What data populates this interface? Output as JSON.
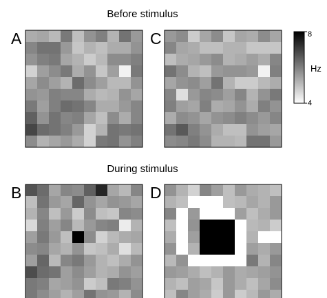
{
  "chart_data": {
    "type": "heatmap",
    "section_titles": {
      "top": "Before stimulus",
      "bottom": "During stimulus"
    },
    "colorbar": {
      "min": 4,
      "max": 8,
      "ticks": [
        "8",
        "4"
      ],
      "unit": "Hz",
      "colormap": [
        "#ffffff",
        "#000000"
      ]
    },
    "grid_size": [
      10,
      10
    ],
    "panels": [
      {
        "label": "A",
        "values": [
          [
            5.3,
            5.4,
            5.1,
            6.1,
            5.0,
            5.7,
            6.0,
            5.2,
            6.2,
            5.6
          ],
          [
            5.9,
            6.2,
            6.2,
            5.6,
            4.9,
            5.2,
            5.0,
            5.3,
            5.3,
            5.7
          ],
          [
            5.7,
            6.0,
            6.1,
            5.4,
            5.2,
            4.8,
            5.1,
            5.8,
            5.8,
            6.0
          ],
          [
            4.7,
            5.5,
            5.8,
            6.1,
            5.3,
            5.7,
            4.9,
            5.5,
            4.2,
            6.1
          ],
          [
            5.4,
            5.8,
            5.5,
            5.2,
            6.3,
            5.8,
            5.5,
            5.1,
            5.1,
            5.7
          ],
          [
            5.7,
            5.6,
            6.0,
            5.9,
            5.9,
            5.3,
            5.1,
            5.2,
            5.7,
            5.4
          ],
          [
            6.1,
            5.5,
            6.0,
            6.3,
            6.2,
            5.9,
            5.3,
            5.3,
            5.6,
            5.9
          ],
          [
            6.5,
            5.7,
            6.2,
            5.9,
            6.0,
            5.4,
            5.0,
            5.8,
            5.3,
            5.9
          ],
          [
            6.9,
            6.3,
            6.2,
            6.0,
            5.6,
            4.7,
            5.2,
            6.2,
            6.1,
            6.2
          ],
          [
            5.8,
            5.2,
            5.4,
            5.6,
            5.3,
            4.7,
            6.1,
            6.2,
            5.7,
            6.0
          ]
        ]
      },
      {
        "label": "C",
        "values": [
          [
            5.6,
            5.8,
            4.8,
            5.4,
            5.8,
            4.9,
            5.4,
            5.3,
            5.8,
            5.4
          ],
          [
            5.9,
            5.4,
            5.3,
            5.0,
            5.0,
            5.2,
            5.2,
            4.9,
            4.9,
            4.9
          ],
          [
            5.0,
            5.3,
            5.4,
            5.6,
            5.8,
            5.2,
            5.3,
            5.5,
            5.3,
            5.9
          ],
          [
            6.2,
            5.8,
            5.2,
            5.0,
            5.6,
            5.7,
            5.7,
            5.6,
            4.2,
            6.0
          ],
          [
            5.4,
            5.7,
            5.8,
            5.5,
            6.2,
            5.2,
            4.8,
            4.8,
            5.1,
            5.3
          ],
          [
            5.9,
            4.5,
            5.6,
            5.9,
            5.8,
            5.5,
            5.9,
            5.2,
            5.7,
            6.1
          ],
          [
            6.0,
            5.5,
            5.4,
            6.0,
            5.3,
            5.4,
            5.7,
            5.3,
            6.0,
            5.7
          ],
          [
            5.3,
            5.8,
            5.7,
            5.4,
            5.7,
            5.8,
            6.0,
            5.8,
            5.6,
            5.9
          ],
          [
            6.2,
            6.6,
            6.0,
            5.7,
            5.3,
            5.0,
            5.0,
            5.7,
            5.5,
            5.4
          ],
          [
            5.8,
            5.9,
            6.1,
            5.8,
            5.2,
            5.2,
            5.1,
            6.2,
            6.2,
            5.6
          ]
        ]
      },
      {
        "label": "B",
        "values": [
          [
            6.7,
            6.3,
            5.4,
            5.9,
            5.8,
            6.5,
            7.4,
            5.4,
            5.1,
            5.9
          ],
          [
            5.0,
            6.2,
            5.6,
            5.4,
            6.4,
            5.7,
            5.4,
            5.7,
            5.6,
            5.4
          ],
          [
            5.2,
            5.9,
            5.0,
            5.6,
            4.8,
            5.8,
            5.0,
            4.9,
            5.9,
            5.8
          ],
          [
            4.6,
            6.0,
            5.5,
            5.9,
            5.1,
            5.6,
            5.9,
            6.0,
            4.3,
            5.2
          ],
          [
            5.5,
            6.1,
            5.6,
            5.0,
            8.0,
            5.8,
            4.7,
            5.1,
            5.3,
            5.4
          ],
          [
            5.8,
            5.9,
            5.4,
            5.2,
            5.7,
            4.9,
            5.0,
            5.3,
            4.5,
            5.1
          ],
          [
            5.5,
            6.4,
            5.1,
            5.9,
            6.1,
            5.6,
            5.2,
            5.0,
            5.3,
            5.7
          ],
          [
            6.8,
            6.3,
            6.2,
            5.5,
            5.8,
            5.5,
            5.2,
            5.3,
            5.7,
            5.5
          ],
          [
            6.1,
            6.0,
            5.4,
            5.5,
            5.7,
            4.8,
            5.0,
            6.1,
            6.0,
            5.7
          ],
          [
            6.1,
            5.8,
            5.5,
            5.2,
            5.5,
            6.2,
            5.7,
            5.6,
            5.2,
            5.8
          ]
        ]
      },
      {
        "label": "D",
        "values": [
          [
            5.7,
            5.2,
            4.7,
            5.9,
            5.5,
            5.0,
            5.6,
            5.3,
            5.2,
            5.0
          ],
          [
            5.2,
            5.0,
            4.0,
            4.0,
            4.0,
            5.0,
            5.1,
            5.4,
            5.2,
            5.6
          ],
          [
            5.9,
            4.0,
            5.6,
            4.0,
            4.0,
            4.0,
            5.5,
            5.0,
            5.3,
            5.6
          ],
          [
            5.0,
            4.0,
            5.7,
            8.0,
            8.0,
            8.0,
            4.0,
            5.1,
            5.2,
            4.8
          ],
          [
            5.3,
            4.0,
            5.5,
            8.0,
            8.0,
            8.0,
            4.0,
            5.2,
            4.0,
            4.0
          ],
          [
            5.7,
            4.0,
            5.2,
            8.0,
            8.0,
            8.0,
            4.0,
            5.5,
            5.3,
            5.6
          ],
          [
            5.1,
            5.7,
            4.0,
            4.0,
            4.0,
            4.0,
            4.0,
            6.1,
            5.2,
            5.9
          ],
          [
            5.6,
            5.5,
            5.3,
            5.0,
            5.2,
            5.6,
            5.3,
            5.4,
            5.5,
            5.7
          ],
          [
            5.2,
            5.0,
            5.5,
            5.4,
            4.9,
            5.6,
            5.3,
            5.0,
            5.4,
            5.8
          ],
          [
            5.0,
            5.9,
            5.5,
            5.3,
            4.8,
            5.6,
            4.8,
            5.1,
            5.6,
            5.3
          ]
        ]
      }
    ]
  }
}
